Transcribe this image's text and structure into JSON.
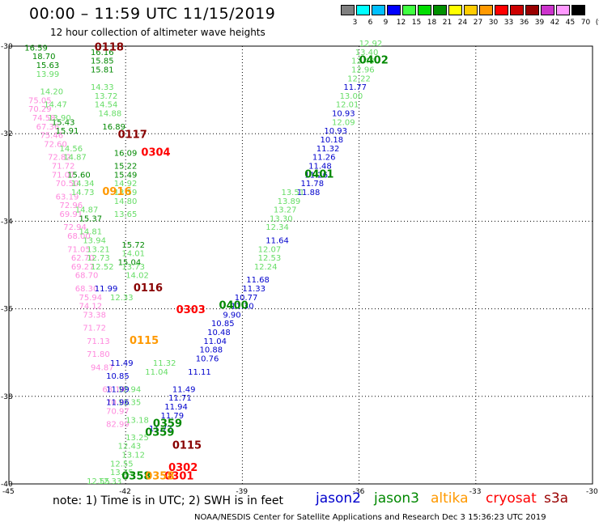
{
  "header": {
    "title": "00:00 – 11:59 UTC 11/15/2019",
    "subtitle": "12 hour collection of altimeter wave heights"
  },
  "colorbar": {
    "labels": [
      "3",
      "6",
      "9",
      "12",
      "15",
      "18",
      "21",
      "24",
      "27",
      "30",
      "33",
      "36",
      "39",
      "42",
      "45",
      "70",
      "(ft)"
    ],
    "colors": [
      "#808080",
      "#00ffff",
      "#00c0ff",
      "#0000ff",
      "#40ff40",
      "#00dd00",
      "#009000",
      "#ffff00",
      "#ffcc00",
      "#ff9900",
      "#ff0000",
      "#cc0000",
      "#990000",
      "#cc33cc",
      "#ff99ff",
      "#000000"
    ]
  },
  "axes": {
    "lat_ticks": [
      "-30",
      "-32",
      "-34",
      "-36",
      "-38",
      "-40"
    ],
    "lon_ticks": [
      "-45",
      "-42",
      "-39",
      "-36",
      "-33",
      "-30"
    ]
  },
  "footer": {
    "note": "note:  1) Time is in UTC;  2) SWH is in feet",
    "satellites": [
      {
        "name": "jason2",
        "color": "#0000cc"
      },
      {
        "name": "jason3",
        "color": "#008800"
      },
      {
        "name": "altika",
        "color": "#ff9900"
      },
      {
        "name": "cryosat",
        "color": "#ff0000"
      },
      {
        "name": "s3a",
        "color": "#990000"
      }
    ],
    "credit": "NOAA/NESDIS Center for Satellite Applications and Research     Dec  3 15:36:23 UTC 2019"
  },
  "map": {
    "pass_labels": [
      {
        "text": "0118",
        "color": "#880000",
        "lat": -30.1,
        "lon": -42.8
      },
      {
        "text": "0117",
        "color": "#880000",
        "lat": -32.1,
        "lon": -42.2
      },
      {
        "text": "0304",
        "color": "#ff0000",
        "lat": -32.5,
        "lon": -41.6
      },
      {
        "text": "0916",
        "color": "#ff9900",
        "lat": -33.4,
        "lon": -42.6
      },
      {
        "text": "0116",
        "color": "#880000",
        "lat": -35.6,
        "lon": -41.8
      },
      {
        "text": "0303",
        "color": "#ff0000",
        "lat": -36.1,
        "lon": -40.7
      },
      {
        "text": "0115",
        "color": "#ff9900",
        "lat": -36.8,
        "lon": -41.9
      },
      {
        "text": "0402",
        "color": "#008800",
        "lat": -30.4,
        "lon": -36.0
      },
      {
        "text": "0401",
        "color": "#008800",
        "lat": -33.0,
        "lon": -37.4
      },
      {
        "text": "0400",
        "color": "#008800",
        "lat": -36.0,
        "lon": -39.6
      },
      {
        "text": "0359",
        "color": "#008800",
        "lat": -38.7,
        "lon": -41.3
      },
      {
        "text": "0359",
        "color": "#008800",
        "lat": -38.9,
        "lon": -41.5
      },
      {
        "text": "0115",
        "color": "#880000",
        "lat": -39.2,
        "lon": -40.8
      },
      {
        "text": "0302",
        "color": "#ff0000",
        "lat": -39.7,
        "lon": -40.9
      },
      {
        "text": "0301",
        "color": "#ff0000",
        "lat": -39.9,
        "lon": -41.0
      },
      {
        "text": "0358",
        "color": "#008800",
        "lat": -39.9,
        "lon": -42.1
      },
      {
        "text": "0358",
        "color": "#ff9900",
        "lat": -39.9,
        "lon": -41.5
      }
    ],
    "tracks": [
      {
        "color": "#ff88dd",
        "points": [
          {
            "lat": -31.3,
            "lon": -44.5,
            "value": "75.05"
          },
          {
            "lat": -31.5,
            "lon": -44.5,
            "value": "70.29"
          },
          {
            "lat": -31.7,
            "lon": -44.4,
            "value": "74.58"
          },
          {
            "lat": -31.9,
            "lon": -44.3,
            "value": "67.36"
          },
          {
            "lat": -32.1,
            "lon": -44.2,
            "value": "75.46"
          },
          {
            "lat": -32.3,
            "lon": -44.1,
            "value": "72.60"
          },
          {
            "lat": -32.6,
            "lon": -44.0,
            "value": "72.82"
          },
          {
            "lat": -32.8,
            "lon": -43.9,
            "value": "71.72"
          },
          {
            "lat": -33.0,
            "lon": -43.9,
            "value": "71.07"
          },
          {
            "lat": -33.2,
            "lon": -43.8,
            "value": "70.50"
          },
          {
            "lat": -33.5,
            "lon": -43.8,
            "value": "63.19"
          },
          {
            "lat": -33.7,
            "lon": -43.7,
            "value": "72.96"
          },
          {
            "lat": -33.9,
            "lon": -43.7,
            "value": "69.91"
          },
          {
            "lat": -34.2,
            "lon": -43.6,
            "value": "72.94"
          },
          {
            "lat": -34.4,
            "lon": -43.5,
            "value": "68.00"
          },
          {
            "lat": -34.7,
            "lon": -43.5,
            "value": "71.05"
          },
          {
            "lat": -34.9,
            "lon": -43.4,
            "value": "62.70"
          },
          {
            "lat": -35.1,
            "lon": -43.4,
            "value": "69.27"
          },
          {
            "lat": -35.3,
            "lon": -43.3,
            "value": "68.70"
          },
          {
            "lat": -35.6,
            "lon": -43.3,
            "value": "68.30"
          },
          {
            "lat": -35.8,
            "lon": -43.2,
            "value": "75.94"
          },
          {
            "lat": -36.0,
            "lon": -43.2,
            "value": "74.12"
          },
          {
            "lat": -36.2,
            "lon": -43.1,
            "value": "73.38"
          },
          {
            "lat": -36.5,
            "lon": -43.1,
            "value": "71.72"
          },
          {
            "lat": -36.8,
            "lon": -43.0,
            "value": "71.13"
          },
          {
            "lat": -37.1,
            "lon": -43.0,
            "value": "71.80"
          },
          {
            "lat": -37.4,
            "lon": -42.9,
            "value": "94.87"
          },
          {
            "lat": -37.9,
            "lon": -42.6,
            "value": "68.14"
          },
          {
            "lat": -38.2,
            "lon": -42.5,
            "value": "70.65"
          },
          {
            "lat": -38.4,
            "lon": -42.5,
            "value": "70.97"
          },
          {
            "lat": -38.7,
            "lon": -42.5,
            "value": "82.99"
          }
        ]
      },
      {
        "color": "#008800",
        "points": [
          {
            "lat": -30.1,
            "lon": -44.6,
            "value": "16.59"
          },
          {
            "lat": -30.3,
            "lon": -44.4,
            "value": "18.70"
          },
          {
            "lat": -30.5,
            "lon": -44.3,
            "value": "15.63"
          },
          {
            "lat": -31.8,
            "lon": -43.9,
            "value": "15.43"
          },
          {
            "lat": -32.0,
            "lon": -43.8,
            "value": "15.91"
          },
          {
            "lat": -33.0,
            "lon": -43.5,
            "value": "15.60"
          },
          {
            "lat": -34.0,
            "lon": -43.2,
            "value": "15.37"
          },
          {
            "lat": -31.9,
            "lon": -42.6,
            "value": "16.89"
          },
          {
            "lat": -32.5,
            "lon": -42.3,
            "value": "16.09"
          },
          {
            "lat": -32.8,
            "lon": -42.3,
            "value": "15.22"
          },
          {
            "lat": -33.0,
            "lon": -42.3,
            "value": "15.49"
          },
          {
            "lat": -35.0,
            "lon": -42.2,
            "value": "15.04"
          },
          {
            "lat": -34.6,
            "lon": -42.1,
            "value": "15.72"
          },
          {
            "lat": -30.6,
            "lon": -42.9,
            "value": "15.81"
          },
          {
            "lat": -30.4,
            "lon": -42.9,
            "value": "15.85"
          },
          {
            "lat": -30.2,
            "lon": -42.9,
            "value": "16.16"
          }
        ]
      },
      {
        "color": "#66dd66",
        "points": [
          {
            "lat": -30.7,
            "lon": -44.3,
            "value": "13.99"
          },
          {
            "lat": -31.1,
            "lon": -44.2,
            "value": "14.20"
          },
          {
            "lat": -31.4,
            "lon": -44.1,
            "value": "14.47"
          },
          {
            "lat": -31.7,
            "lon": -44.0,
            "value": "13.90"
          },
          {
            "lat": -32.4,
            "lon": -43.7,
            "value": "14.56"
          },
          {
            "lat": -32.6,
            "lon": -43.6,
            "value": "14.87"
          },
          {
            "lat": -33.2,
            "lon": -43.4,
            "value": "14.34"
          },
          {
            "lat": -33.4,
            "lon": -43.4,
            "value": "14.73"
          },
          {
            "lat": -33.8,
            "lon": -43.3,
            "value": "14.87"
          },
          {
            "lat": -34.3,
            "lon": -43.2,
            "value": "14.81"
          },
          {
            "lat": -34.5,
            "lon": -43.1,
            "value": "13.94"
          },
          {
            "lat": -34.7,
            "lon": -43.0,
            "value": "13.21"
          },
          {
            "lat": -34.9,
            "lon": -43.0,
            "value": "12.73"
          },
          {
            "lat": -35.1,
            "lon": -42.9,
            "value": "12.52"
          },
          {
            "lat": -31.0,
            "lon": -42.9,
            "value": "14.33"
          },
          {
            "lat": -31.2,
            "lon": -42.8,
            "value": "13.72"
          },
          {
            "lat": -31.4,
            "lon": -42.8,
            "value": "14.54"
          },
          {
            "lat": -31.6,
            "lon": -42.7,
            "value": "14.88"
          },
          {
            "lat": -33.2,
            "lon": -42.3,
            "value": "14.92"
          },
          {
            "lat": -33.4,
            "lon": -42.3,
            "value": "13.59"
          },
          {
            "lat": -33.6,
            "lon": -42.3,
            "value": "14.80"
          },
          {
            "lat": -33.9,
            "lon": -42.3,
            "value": "13.65"
          },
          {
            "lat": -34.8,
            "lon": -42.1,
            "value": "14.01"
          },
          {
            "lat": -35.1,
            "lon": -42.1,
            "value": "13.73"
          },
          {
            "lat": -35.3,
            "lon": -42.0,
            "value": "14.02"
          },
          {
            "lat": -35.8,
            "lon": -42.4,
            "value": "12.33"
          },
          {
            "lat": -30.0,
            "lon": -36.0,
            "value": "12.92"
          },
          {
            "lat": -30.2,
            "lon": -36.1,
            "value": "13.40"
          },
          {
            "lat": -30.4,
            "lon": -36.2,
            "value": "12.48"
          },
          {
            "lat": -30.6,
            "lon": -36.2,
            "value": "12.96"
          },
          {
            "lat": -30.8,
            "lon": -36.3,
            "value": "12.22"
          },
          {
            "lat": -31.2,
            "lon": -36.5,
            "value": "13.00"
          },
          {
            "lat": -31.4,
            "lon": -36.6,
            "value": "12.01"
          },
          {
            "lat": -31.8,
            "lon": -36.7,
            "value": "12.09"
          },
          {
            "lat": -33.4,
            "lon": -38.0,
            "value": "13.51"
          },
          {
            "lat": -33.6,
            "lon": -38.1,
            "value": "13.89"
          },
          {
            "lat": -33.8,
            "lon": -38.2,
            "value": "13.27"
          },
          {
            "lat": -34.0,
            "lon": -38.3,
            "value": "13.30"
          },
          {
            "lat": -34.2,
            "lon": -38.4,
            "value": "12.34"
          },
          {
            "lat": -34.7,
            "lon": -38.6,
            "value": "12.07"
          },
          {
            "lat": -34.9,
            "lon": -38.6,
            "value": "12.53"
          },
          {
            "lat": -35.1,
            "lon": -38.7,
            "value": "12.24"
          },
          {
            "lat": -38.6,
            "lon": -42.0,
            "value": "13.18"
          },
          {
            "lat": -39.0,
            "lon": -42.0,
            "value": "13.25"
          },
          {
            "lat": -39.2,
            "lon": -42.2,
            "value": "12.43"
          },
          {
            "lat": -39.4,
            "lon": -42.1,
            "value": "13.12"
          },
          {
            "lat": -39.6,
            "lon": -42.4,
            "value": "12.55"
          },
          {
            "lat": -39.8,
            "lon": -42.4,
            "value": "13.75"
          },
          {
            "lat": -40.0,
            "lon": -42.7,
            "value": "12.33"
          },
          {
            "lat": -40.0,
            "lon": -43.0,
            "value": "12.55"
          },
          {
            "lat": -37.3,
            "lon": -41.3,
            "value": "11.32"
          },
          {
            "lat": -37.5,
            "lon": -41.5,
            "value": "11.04"
          },
          {
            "lat": -37.9,
            "lon": -42.2,
            "value": "12.94"
          },
          {
            "lat": -38.2,
            "lon": -42.2,
            "value": "13.35"
          }
        ]
      },
      {
        "color": "#0000cc",
        "points": [
          {
            "lat": -31.0,
            "lon": -36.4,
            "value": "11.77"
          },
          {
            "lat": -31.6,
            "lon": -36.7,
            "value": "10.93"
          },
          {
            "lat": -32.0,
            "lon": -36.9,
            "value": "10.93"
          },
          {
            "lat": -32.2,
            "lon": -37.0,
            "value": "10.18"
          },
          {
            "lat": -32.4,
            "lon": -37.1,
            "value": "11.32"
          },
          {
            "lat": -32.6,
            "lon": -37.2,
            "value": "11.26"
          },
          {
            "lat": -32.8,
            "lon": -37.3,
            "value": "11.48"
          },
          {
            "lat": -33.0,
            "lon": -37.4,
            "value": "11.26"
          },
          {
            "lat": -33.2,
            "lon": -37.5,
            "value": "11.78"
          },
          {
            "lat": -33.4,
            "lon": -37.6,
            "value": "11.88"
          },
          {
            "lat": -34.5,
            "lon": -38.4,
            "value": "11.64"
          },
          {
            "lat": -35.4,
            "lon": -38.9,
            "value": "11.68"
          },
          {
            "lat": -35.6,
            "lon": -39.0,
            "value": "11.33"
          },
          {
            "lat": -35.8,
            "lon": -39.2,
            "value": "10.77"
          },
          {
            "lat": -36.0,
            "lon": -39.3,
            "value": "11.30"
          },
          {
            "lat": -36.2,
            "lon": -39.5,
            "value": "9.90"
          },
          {
            "lat": -36.4,
            "lon": -39.8,
            "value": "10.85"
          },
          {
            "lat": -36.6,
            "lon": -39.9,
            "value": "10.48"
          },
          {
            "lat": -36.8,
            "lon": -40.0,
            "value": "11.04"
          },
          {
            "lat": -37.0,
            "lon": -40.1,
            "value": "10.88"
          },
          {
            "lat": -37.2,
            "lon": -40.2,
            "value": "10.76"
          },
          {
            "lat": -37.5,
            "lon": -40.4,
            "value": "11.11"
          },
          {
            "lat": -37.9,
            "lon": -40.8,
            "value": "11.49"
          },
          {
            "lat": -38.1,
            "lon": -40.9,
            "value": "11.71"
          },
          {
            "lat": -38.3,
            "lon": -41.0,
            "value": "11.94"
          },
          {
            "lat": -38.5,
            "lon": -41.1,
            "value": "11.79"
          },
          {
            "lat": -38.8,
            "lon": -41.4,
            "value": "11.72"
          },
          {
            "lat": -35.6,
            "lon": -42.8,
            "value": "11.99"
          },
          {
            "lat": -37.3,
            "lon": -42.4,
            "value": "11.49"
          },
          {
            "lat": -37.6,
            "lon": -42.5,
            "value": "10.85"
          },
          {
            "lat": -37.9,
            "lon": -42.5,
            "value": "11.99"
          },
          {
            "lat": -38.2,
            "lon": -42.5,
            "value": "11.96"
          }
        ]
      }
    ]
  }
}
